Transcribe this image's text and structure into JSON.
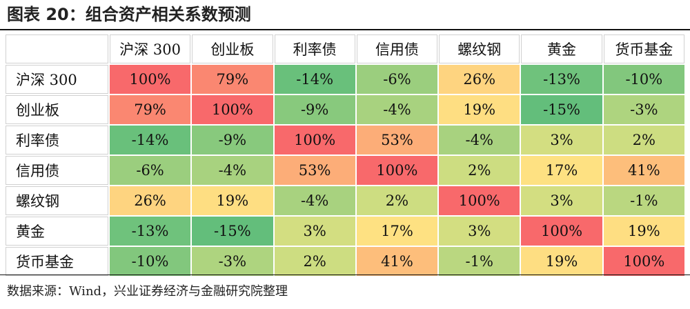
{
  "title": "图表 20：组合资产相关系数预测",
  "source": "数据来源：Wind，兴业证券经济与金融研究院整理",
  "chart_data": {
    "type": "heatmap",
    "title": "图表 20：组合资产相关系数预测",
    "rows": [
      "沪深 300",
      "创业板",
      "利率债",
      "信用债",
      "螺纹钢",
      "黄金",
      "货币基金"
    ],
    "columns": [
      "沪深 300",
      "创业板",
      "利率债",
      "信用债",
      "螺纹钢",
      "黄金",
      "货币基金"
    ],
    "values": [
      [
        100,
        79,
        -14,
        -6,
        26,
        -13,
        -10
      ],
      [
        79,
        100,
        -9,
        -4,
        19,
        -15,
        -3
      ],
      [
        -14,
        -9,
        100,
        53,
        -4,
        3,
        2
      ],
      [
        -6,
        -4,
        53,
        100,
        2,
        17,
        41
      ],
      [
        26,
        19,
        -4,
        2,
        100,
        3,
        -1
      ],
      [
        -13,
        -15,
        3,
        17,
        3,
        100,
        19
      ],
      [
        -10,
        -3,
        2,
        41,
        -1,
        19,
        100
      ]
    ],
    "unit": "%",
    "color_scale": {
      "min": -15,
      "mid": 10,
      "max": 100,
      "low_color": "#63be7b",
      "mid_color": "#ffeb84",
      "high_color": "#f8696b"
    }
  }
}
